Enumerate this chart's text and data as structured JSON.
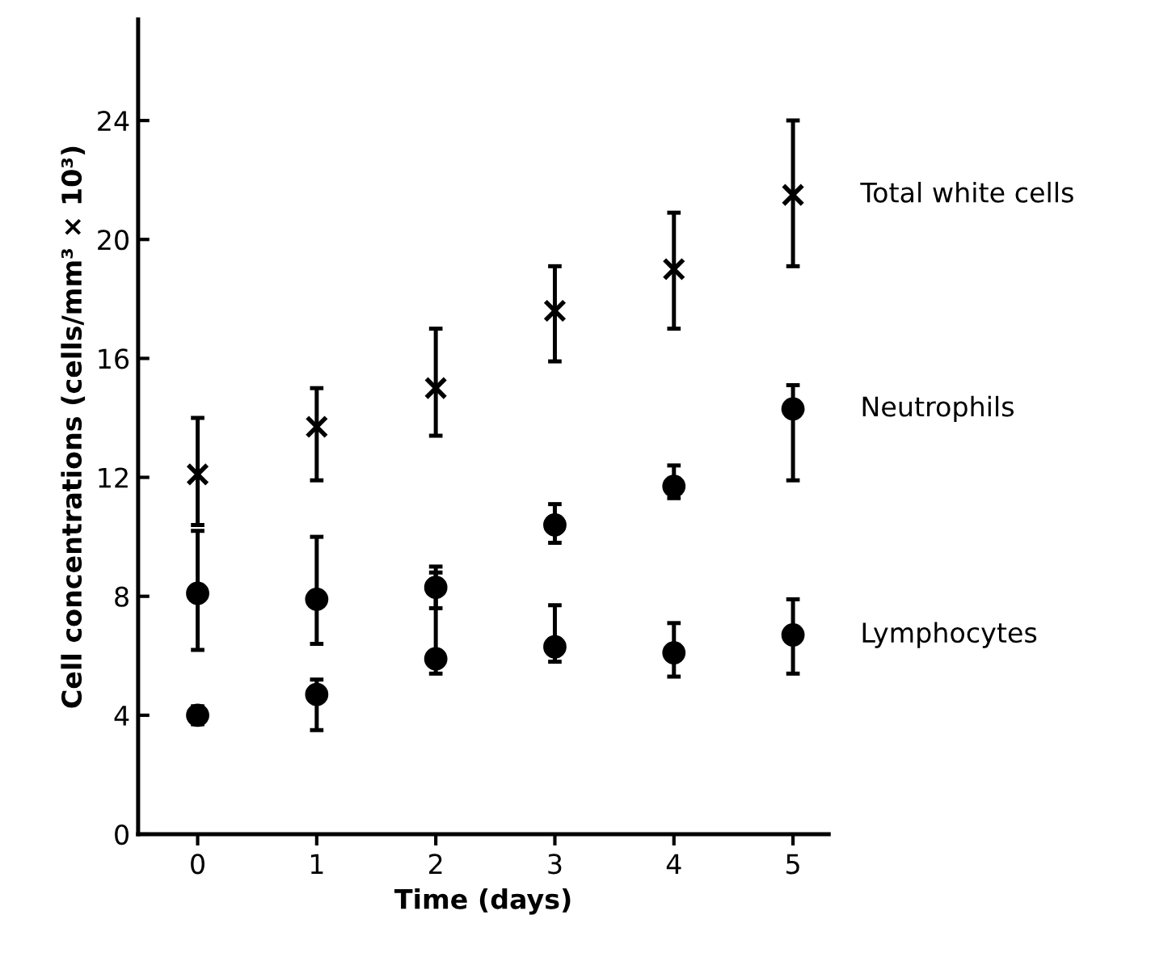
{
  "chart_data": {
    "type": "scatter",
    "xlabel": "Time (days)",
    "ylabel": "Cell concentrations (cells/mm³ × 10³)",
    "x": [
      0,
      1,
      2,
      3,
      4,
      5
    ],
    "series": [
      {
        "name": "Total white cells",
        "color": "#000000",
        "marker": "cross",
        "values": [
          12.1,
          13.7,
          15.0,
          17.6,
          19.0,
          21.5
        ],
        "errors": [
          [
            10.4,
            14.0
          ],
          [
            11.9,
            15.0
          ],
          [
            13.4,
            17.0
          ],
          [
            15.9,
            19.1
          ],
          [
            17.0,
            20.9
          ],
          [
            19.1,
            24.0
          ]
        ]
      },
      {
        "name": "Neutrophils",
        "color": "#000000",
        "marker": "circle",
        "values": [
          4.0,
          4.7,
          8.3,
          10.4,
          11.7,
          14.3
        ],
        "errors": [
          [
            3.7,
            4.3
          ],
          [
            3.5,
            5.2
          ],
          [
            7.6,
            8.8
          ],
          [
            9.8,
            11.1
          ],
          [
            11.3,
            12.4
          ],
          [
            11.9,
            15.1
          ]
        ]
      },
      {
        "name": "Lymphocytes",
        "color": "#000000",
        "marker": "circle",
        "values": [
          8.1,
          7.9,
          5.9,
          6.3,
          6.1,
          6.7
        ],
        "errors": [
          [
            6.2,
            10.2
          ],
          [
            6.4,
            10.0
          ],
          [
            5.4,
            9.0
          ],
          [
            5.8,
            7.7
          ],
          [
            5.3,
            7.1
          ],
          [
            5.4,
            7.9
          ]
        ]
      }
    ],
    "xlim": [
      -0.5,
      5.3
    ],
    "xticks": [
      0,
      1,
      2,
      3,
      4,
      5
    ],
    "ylim": [
      0,
      27.4
    ],
    "yticks": [
      0,
      4,
      8,
      12,
      16,
      20,
      24
    ],
    "grid": false,
    "legend": false
  }
}
